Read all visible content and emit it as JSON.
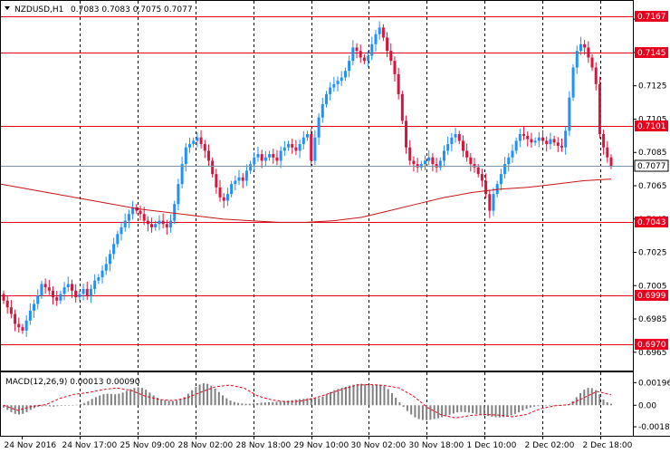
{
  "window": {
    "symbol_timeframe": "NZDUSD,H1",
    "ohlc": "0.7083 0.7083 0.7075 0.7077"
  },
  "colors": {
    "bull": "#1e90ff",
    "bear": "#dc143c",
    "hline": "#e8001c",
    "ma": "#c81414",
    "last_line": "#7f93a8",
    "macd_hist": "#808080",
    "macd_signal": "#e8001c"
  },
  "chart_data": {
    "type": "candlestick",
    "price_axis": {
      "min": 0.6954,
      "max": 0.7176,
      "ticks": [
        "0.7165",
        "0.7145",
        "0.7125",
        "0.7105",
        "0.7085",
        "0.7065",
        "0.7045",
        "0.7025",
        "0.7005",
        "0.6985",
        "0.6965"
      ]
    },
    "level_labels": [
      "0.7167",
      "0.7145",
      "0.7101",
      "0.7043",
      "0.6999",
      "0.6970"
    ],
    "levels": [
      0.7167,
      0.7145,
      0.7101,
      0.7043,
      0.6999,
      0.697
    ],
    "last_price": {
      "label": "0.7077",
      "value": 0.7077
    },
    "time_labels": [
      "24 Nov 2016",
      "24 Nov 17:00",
      "25 Nov 09:00",
      "28 Nov 02:00",
      "28 Nov 18:00",
      "29 Nov 10:00",
      "30 Nov 02:00",
      "30 Nov 18:00",
      "1 Dec 10:00",
      "2 Dec 02:00",
      "2 Dec 18:00"
    ],
    "close": [
      0.6996,
      0.6992,
      0.6988,
      0.6982,
      0.698,
      0.6978,
      0.6984,
      0.699,
      0.6994,
      0.6999,
      0.7006,
      0.7004,
      0.7002,
      0.6998,
      0.6996,
      0.7,
      0.7004,
      0.7006,
      0.7002,
      0.6998,
      0.7,
      0.7003,
      0.6999,
      0.7003,
      0.7008,
      0.701,
      0.7014,
      0.7018,
      0.7024,
      0.703,
      0.7036,
      0.704,
      0.7044,
      0.7048,
      0.7052,
      0.705,
      0.7048,
      0.7044,
      0.7042,
      0.704,
      0.7042,
      0.7044,
      0.7042,
      0.704,
      0.7044,
      0.7054,
      0.7066,
      0.7078,
      0.7088,
      0.709,
      0.7092,
      0.7094,
      0.709,
      0.7086,
      0.708,
      0.7072,
      0.7064,
      0.7058,
      0.7056,
      0.706,
      0.7066,
      0.7068,
      0.707,
      0.7068,
      0.7074,
      0.7078,
      0.7082,
      0.7084,
      0.708,
      0.7082,
      0.7084,
      0.7082,
      0.708,
      0.7086,
      0.7088,
      0.709,
      0.7088,
      0.7086,
      0.709,
      0.7094,
      0.7096,
      0.708,
      0.7094,
      0.7106,
      0.7114,
      0.712,
      0.7124,
      0.7126,
      0.7128,
      0.713,
      0.7134,
      0.714,
      0.7148,
      0.7146,
      0.7142,
      0.714,
      0.7143,
      0.715,
      0.7156,
      0.716,
      0.7154,
      0.7146,
      0.714,
      0.7132,
      0.712,
      0.7104,
      0.7088,
      0.708,
      0.7078,
      0.7076,
      0.7078,
      0.708,
      0.7082,
      0.7078,
      0.7076,
      0.708,
      0.7086,
      0.709,
      0.7094,
      0.7096,
      0.7092,
      0.7086,
      0.7082,
      0.7078,
      0.7076,
      0.7072,
      0.7068,
      0.706,
      0.705,
      0.706,
      0.7066,
      0.7072,
      0.7078,
      0.7082,
      0.7086,
      0.7092,
      0.7096,
      0.7095,
      0.7093,
      0.7091,
      0.7092,
      0.7094,
      0.7092,
      0.709,
      0.7093,
      0.7091,
      0.7089,
      0.7088,
      0.7098,
      0.7118,
      0.7136,
      0.7146,
      0.715,
      0.7148,
      0.7142,
      0.7136,
      0.7126,
      0.7096,
      0.7088,
      0.7082,
      0.7077
    ],
    "ma": [
      0.7066,
      0.7063,
      0.706,
      0.7057,
      0.7054,
      0.7051,
      0.7049,
      0.7047,
      0.7045,
      0.7044,
      0.7043,
      0.7043,
      0.7044,
      0.7046,
      0.705,
      0.7054,
      0.7058,
      0.7061,
      0.7063,
      0.7064,
      0.7066,
      0.7068,
      0.7069
    ],
    "macd": [
      -0.0002,
      -0.0004,
      -0.0006,
      -0.00075,
      -0.0008,
      -0.00075,
      -0.0006,
      -0.0004,
      -0.00025,
      -0.00015,
      -0.0001,
      -8e-05,
      -0.0001,
      -0.00012,
      -8e-05,
      -5e-05,
      -2e-05,
      0.0,
      2e-05,
      4e-05,
      0.0001,
      0.0002,
      0.00035,
      0.00055,
      0.0007,
      0.00085,
      0.00095,
      0.001,
      0.00098,
      0.00095,
      0.001,
      0.0011,
      0.00125,
      0.0014,
      0.0015,
      0.00155,
      0.0015,
      0.00135,
      0.0011,
      0.00085,
      0.00065,
      0.0005,
      0.00042,
      0.00038,
      0.00035,
      0.0004,
      0.0005,
      0.0007,
      0.001,
      0.0013,
      0.0016,
      0.0018,
      0.0019,
      0.00185,
      0.0017,
      0.00145,
      0.00115,
      0.00085,
      0.0006,
      0.0004,
      0.00028,
      0.0002,
      0.00015,
      0.00012,
      0.00012,
      0.00015,
      0.00018,
      0.00022,
      0.00024,
      0.00026,
      0.00028,
      0.0003,
      0.00032,
      0.00036,
      0.0004,
      0.00044,
      0.00048,
      0.00052,
      0.00056,
      0.0006,
      0.00062,
      0.00058,
      0.00062,
      0.00075,
      0.00095,
      0.00115,
      0.0013,
      0.00142,
      0.00152,
      0.0016,
      0.0017,
      0.00178,
      0.00184,
      0.00186,
      0.00184,
      0.00178,
      0.00176,
      0.0018,
      0.00178,
      0.00165,
      0.0014,
      0.00105,
      0.00065,
      0.00025,
      -0.00015,
      -0.0005,
      -0.0008,
      -0.00105,
      -0.0012,
      -0.00128,
      -0.0013,
      -0.00126,
      -0.0012,
      -0.00112,
      -0.00104,
      -0.00094,
      -0.00082,
      -0.00072,
      -0.00062,
      -0.00058,
      -0.0006,
      -0.00064,
      -0.0007,
      -0.00076,
      -0.00082,
      -0.00088,
      -0.00094,
      -0.001,
      -0.00104,
      -0.00106,
      -0.00104,
      -0.00098,
      -0.00088,
      -0.00076,
      -0.00062,
      -0.00046,
      -0.00032,
      -0.0002,
      -0.00012,
      -8e-05,
      -6e-05,
      -4e-05,
      -2e-05,
      0.0,
      0.0,
      -2e-05,
      2e-05,
      0.0001,
      0.00035,
      0.0007,
      0.00105,
      0.00135,
      0.0015,
      0.00148,
      0.0013,
      0.00095,
      0.0005,
      0.00025,
      0.00013
    ],
    "macd_signal": [
      0.0,
      -0.00045,
      -0.0001,
      5e-05,
      0.0006,
      0.00095,
      0.0011,
      0.00135,
      0.0015,
      0.0013,
      0.0008,
      0.0005,
      0.0004,
      0.00065,
      0.00115,
      0.0016,
      0.00175,
      0.0015,
      0.0008,
      0.00045,
      0.0003,
      0.00035,
      0.0006,
      0.001,
      0.0014,
      0.00175,
      0.0018,
      0.0017,
      0.0015,
      0.0008,
      -0.0002,
      -0.00085,
      -0.0011,
      -0.0009,
      -0.0008,
      -0.00085,
      -0.001,
      -0.0008,
      -0.0003,
      -5e-05,
      5e-05,
      0.0006,
      0.0012,
      0.0009
    ],
    "macd_axis": {
      "min": -0.00265,
      "max": 0.00285,
      "ticks": [
        "0.00196",
        "0.00",
        "-0.00187"
      ]
    },
    "macd_title": "MACD(12,26,9) 0.00013 0.00090"
  }
}
